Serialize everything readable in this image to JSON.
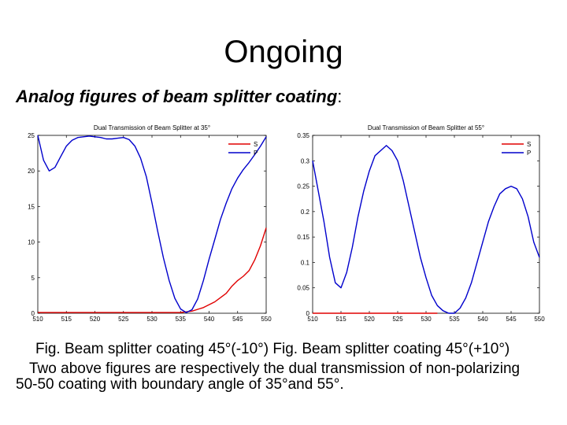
{
  "slide": {
    "title": "Ongoing",
    "heading_bold": "Analog figures of beam splitter coating",
    "heading_suffix": ":",
    "caption_line1": "Fig. Beam splitter coating  45°(-10°) Fig. Beam splitter coating 45°(+10°)",
    "caption_line2": "Two above figures are respectively the dual transmission of non-polarizing",
    "caption_line3": "50-50 coating with boundary angle of 35°and 55°."
  },
  "chart_data": [
    {
      "type": "line",
      "title": "Dual Transmission of Beam Splitter at 35°",
      "xlabel": "",
      "ylabel": "",
      "xlim": [
        510,
        550
      ],
      "ylim": [
        0,
        25
      ],
      "xticks": [
        "510",
        "515",
        "520",
        "525",
        "530",
        "535",
        "540",
        "545",
        "550"
      ],
      "yticks": [
        "0",
        "5",
        "10",
        "15",
        "20",
        "25"
      ],
      "legend": "top-right",
      "grid": false,
      "series": [
        {
          "name": "S",
          "color": "#e00000",
          "points": [
            [
              510,
              0.1
            ],
            [
              520,
              0.1
            ],
            [
              525,
              0.1
            ],
            [
              530,
              0.1
            ],
            [
              535,
              0.1
            ],
            [
              537,
              0.3
            ],
            [
              539,
              0.8
            ],
            [
              541,
              1.6
            ],
            [
              543,
              2.8
            ],
            [
              544,
              3.8
            ],
            [
              545,
              4.6
            ],
            [
              546,
              5.2
            ],
            [
              547,
              6.0
            ],
            [
              548,
              7.5
            ],
            [
              549,
              9.5
            ],
            [
              550,
              12.0
            ]
          ]
        },
        {
          "name": "P",
          "color": "#0000cc",
          "points": [
            [
              510,
              25.0
            ],
            [
              511,
              21.5
            ],
            [
              512,
              20.0
            ],
            [
              513,
              20.5
            ],
            [
              514,
              22.0
            ],
            [
              515,
              23.5
            ],
            [
              516,
              24.3
            ],
            [
              517,
              24.7
            ],
            [
              518,
              24.8
            ],
            [
              519,
              24.9
            ],
            [
              520,
              24.8
            ],
            [
              521,
              24.7
            ],
            [
              522,
              24.5
            ],
            [
              523,
              24.5
            ],
            [
              524,
              24.6
            ],
            [
              525,
              24.7
            ],
            [
              526,
              24.4
            ],
            [
              527,
              23.5
            ],
            [
              528,
              21.8
            ],
            [
              529,
              19.2
            ],
            [
              530,
              15.5
            ],
            [
              531,
              11.5
            ],
            [
              532,
              7.8
            ],
            [
              533,
              4.6
            ],
            [
              534,
              2.1
            ],
            [
              535,
              0.6
            ],
            [
              536,
              0.1
            ],
            [
              537,
              0.5
            ],
            [
              538,
              2.0
            ],
            [
              539,
              4.6
            ],
            [
              540,
              7.6
            ],
            [
              541,
              10.4
            ],
            [
              542,
              13.2
            ],
            [
              543,
              15.5
            ],
            [
              544,
              17.5
            ],
            [
              545,
              19.0
            ],
            [
              546,
              20.2
            ],
            [
              547,
              21.2
            ],
            [
              548,
              22.3
            ],
            [
              549,
              23.5
            ],
            [
              550,
              24.8
            ]
          ]
        }
      ]
    },
    {
      "type": "line",
      "title": "Dual Transmission of Beam Splitter at 55°",
      "xlabel": "",
      "ylabel": "",
      "xlim": [
        510,
        550
      ],
      "ylim": [
        0,
        0.35
      ],
      "xticks": [
        "510",
        "515",
        "520",
        "525",
        "530",
        "535",
        "540",
        "545",
        "550"
      ],
      "yticks": [
        "0",
        "0.05",
        "0.1",
        "0.15",
        "0.2",
        "0.25",
        "0.3",
        "0.35"
      ],
      "legend": "top-right",
      "grid": false,
      "series": [
        {
          "name": "S",
          "color": "#e00000",
          "points": [
            [
              510,
              0.0
            ],
            [
              520,
              0.0
            ],
            [
              530,
              0.0
            ],
            [
              532,
              0.0
            ]
          ]
        },
        {
          "name": "P",
          "color": "#0000cc",
          "points": [
            [
              510,
              0.3
            ],
            [
              511,
              0.24
            ],
            [
              512,
              0.18
            ],
            [
              513,
              0.11
            ],
            [
              514,
              0.06
            ],
            [
              515,
              0.05
            ],
            [
              516,
              0.08
            ],
            [
              517,
              0.13
            ],
            [
              518,
              0.19
            ],
            [
              519,
              0.24
            ],
            [
              520,
              0.28
            ],
            [
              521,
              0.31
            ],
            [
              522,
              0.32
            ],
            [
              523,
              0.33
            ],
            [
              524,
              0.32
            ],
            [
              525,
              0.3
            ],
            [
              526,
              0.26
            ],
            [
              527,
              0.21
            ],
            [
              528,
              0.16
            ],
            [
              529,
              0.11
            ],
            [
              530,
              0.07
            ],
            [
              531,
              0.035
            ],
            [
              532,
              0.015
            ],
            [
              533,
              0.005
            ],
            [
              534,
              0.0
            ],
            [
              535,
              0.0
            ],
            [
              536,
              0.01
            ],
            [
              537,
              0.03
            ],
            [
              538,
              0.06
            ],
            [
              539,
              0.1
            ],
            [
              540,
              0.14
            ],
            [
              541,
              0.18
            ],
            [
              542,
              0.21
            ],
            [
              543,
              0.235
            ],
            [
              544,
              0.245
            ],
            [
              545,
              0.25
            ],
            [
              546,
              0.245
            ],
            [
              547,
              0.225
            ],
            [
              548,
              0.19
            ],
            [
              549,
              0.14
            ],
            [
              550,
              0.11
            ]
          ]
        }
      ]
    }
  ]
}
